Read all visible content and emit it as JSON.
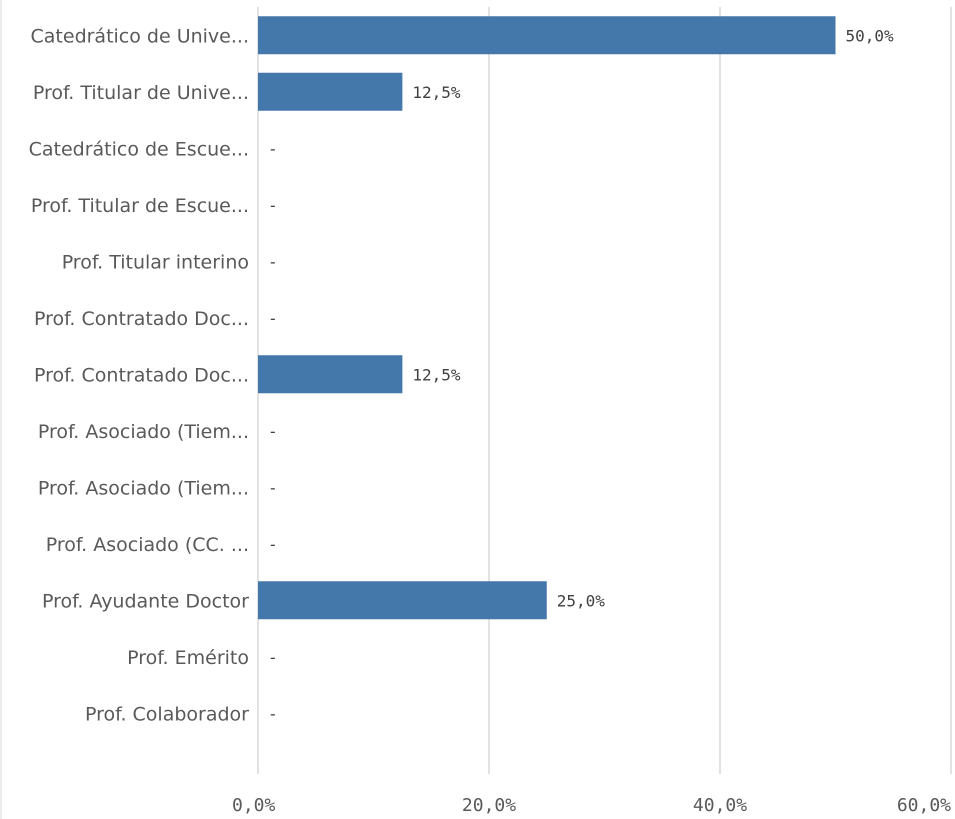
{
  "chart_data": {
    "type": "bar",
    "orientation": "horizontal",
    "categories": [
      "Catedrático de Unive...",
      "Prof. Titular de Unive...",
      "Catedrático de Escue...",
      "Prof. Titular de Escue...",
      "Prof. Titular interino",
      "Prof. Contratado Doc...",
      "Prof. Contratado Doc...",
      "Prof. Asociado (Tiem...",
      "Prof. Asociado (Tiem...",
      "Prof. Asociado (CC. ...",
      "Prof. Ayudante Doctor",
      "Prof. Emérito",
      "Prof. Colaborador"
    ],
    "values": [
      50.0,
      12.5,
      null,
      null,
      null,
      null,
      12.5,
      null,
      null,
      null,
      25.0,
      null,
      null
    ],
    "value_labels": [
      "50,0%",
      "12,5%",
      "-",
      "-",
      "-",
      "-",
      "12,5%",
      "-",
      "-",
      "-",
      "25,0%",
      "-",
      "-"
    ],
    "xlim": [
      0,
      60
    ],
    "xticks": [
      0,
      20,
      40,
      60
    ],
    "xtick_labels": [
      "0,0%",
      "20,0%",
      "40,0%",
      "60,0%"
    ],
    "grid": true,
    "bar_color": "#4477aa"
  }
}
